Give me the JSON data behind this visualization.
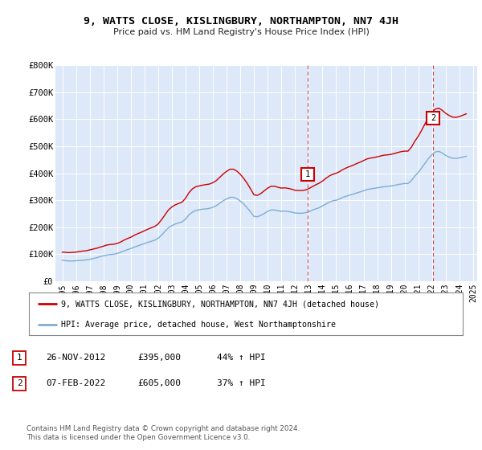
{
  "title": "9, WATTS CLOSE, KISLINGBURY, NORTHAMPTON, NN7 4JH",
  "subtitle": "Price paid vs. HM Land Registry's House Price Index (HPI)",
  "background_color": "#ffffff",
  "plot_bg_color": "#dde8f8",
  "grid_color": "#ffffff",
  "ylim": [
    0,
    800000
  ],
  "yticks": [
    0,
    100000,
    200000,
    300000,
    400000,
    500000,
    600000,
    700000,
    800000
  ],
  "ytick_labels": [
    "£0",
    "£100K",
    "£200K",
    "£300K",
    "£400K",
    "£500K",
    "£600K",
    "£700K",
    "£800K"
  ],
  "xlim_start": 1994.5,
  "xlim_end": 2025.3,
  "xticks": [
    1995,
    1996,
    1997,
    1998,
    1999,
    2000,
    2001,
    2002,
    2003,
    2004,
    2005,
    2006,
    2007,
    2008,
    2009,
    2010,
    2011,
    2012,
    2013,
    2014,
    2015,
    2016,
    2017,
    2018,
    2019,
    2020,
    2021,
    2022,
    2023,
    2024,
    2025
  ],
  "line1_color": "#cc0000",
  "line2_color": "#7eaed4",
  "sale1_x": 2012.9,
  "sale1_y": 395000,
  "sale1_label": "1",
  "sale2_x": 2022.1,
  "sale2_y": 605000,
  "sale2_label": "2",
  "vline1_x": 2012.9,
  "vline2_x": 2022.1,
  "vline_color": "#cc0000",
  "legend_line1": "9, WATTS CLOSE, KISLINGBURY, NORTHAMPTON, NN7 4JH (detached house)",
  "legend_line2": "HPI: Average price, detached house, West Northamptonshire",
  "table_row1": [
    "1",
    "26-NOV-2012",
    "£395,000",
    "44% ↑ HPI"
  ],
  "table_row2": [
    "2",
    "07-FEB-2022",
    "£605,000",
    "37% ↑ HPI"
  ],
  "footer": "Contains HM Land Registry data © Crown copyright and database right 2024.\nThis data is licensed under the Open Government Licence v3.0.",
  "red_hpi": [
    [
      1995.0,
      108000
    ],
    [
      1995.25,
      107000
    ],
    [
      1995.5,
      106000
    ],
    [
      1995.75,
      107000
    ],
    [
      1996.0,
      108000
    ],
    [
      1996.25,
      110000
    ],
    [
      1996.5,
      112000
    ],
    [
      1996.75,
      113000
    ],
    [
      1997.0,
      116000
    ],
    [
      1997.25,
      119000
    ],
    [
      1997.5,
      122000
    ],
    [
      1997.75,
      126000
    ],
    [
      1998.0,
      130000
    ],
    [
      1998.25,
      134000
    ],
    [
      1998.5,
      136000
    ],
    [
      1998.75,
      137000
    ],
    [
      1999.0,
      140000
    ],
    [
      1999.25,
      145000
    ],
    [
      1999.5,
      152000
    ],
    [
      1999.75,
      158000
    ],
    [
      2000.0,
      163000
    ],
    [
      2000.25,
      170000
    ],
    [
      2000.5,
      176000
    ],
    [
      2000.75,
      181000
    ],
    [
      2001.0,
      187000
    ],
    [
      2001.25,
      193000
    ],
    [
      2001.5,
      198000
    ],
    [
      2001.75,
      203000
    ],
    [
      2002.0,
      212000
    ],
    [
      2002.25,
      228000
    ],
    [
      2002.5,
      246000
    ],
    [
      2002.75,
      264000
    ],
    [
      2003.0,
      275000
    ],
    [
      2003.25,
      283000
    ],
    [
      2003.5,
      288000
    ],
    [
      2003.75,
      293000
    ],
    [
      2004.0,
      307000
    ],
    [
      2004.25,
      328000
    ],
    [
      2004.5,
      342000
    ],
    [
      2004.75,
      350000
    ],
    [
      2005.0,
      353000
    ],
    [
      2005.25,
      356000
    ],
    [
      2005.5,
      358000
    ],
    [
      2005.75,
      360000
    ],
    [
      2006.0,
      365000
    ],
    [
      2006.25,
      373000
    ],
    [
      2006.5,
      385000
    ],
    [
      2006.75,
      397000
    ],
    [
      2007.0,
      407000
    ],
    [
      2007.25,
      415000
    ],
    [
      2007.5,
      415000
    ],
    [
      2007.75,
      408000
    ],
    [
      2008.0,
      396000
    ],
    [
      2008.25,
      381000
    ],
    [
      2008.5,
      363000
    ],
    [
      2008.75,
      342000
    ],
    [
      2009.0,
      320000
    ],
    [
      2009.25,
      318000
    ],
    [
      2009.5,
      325000
    ],
    [
      2009.75,
      335000
    ],
    [
      2010.0,
      345000
    ],
    [
      2010.25,
      352000
    ],
    [
      2010.5,
      352000
    ],
    [
      2010.75,
      348000
    ],
    [
      2011.0,
      345000
    ],
    [
      2011.25,
      346000
    ],
    [
      2011.5,
      344000
    ],
    [
      2011.75,
      341000
    ],
    [
      2012.0,
      337000
    ],
    [
      2012.25,
      336000
    ],
    [
      2012.5,
      336000
    ],
    [
      2012.75,
      338000
    ],
    [
      2013.0,
      343000
    ],
    [
      2013.25,
      350000
    ],
    [
      2013.5,
      357000
    ],
    [
      2013.75,
      363000
    ],
    [
      2014.0,
      371000
    ],
    [
      2014.25,
      381000
    ],
    [
      2014.5,
      390000
    ],
    [
      2014.75,
      396000
    ],
    [
      2015.0,
      400000
    ],
    [
      2015.25,
      406000
    ],
    [
      2015.5,
      414000
    ],
    [
      2015.75,
      420000
    ],
    [
      2016.0,
      425000
    ],
    [
      2016.25,
      430000
    ],
    [
      2016.5,
      436000
    ],
    [
      2016.75,
      441000
    ],
    [
      2017.0,
      447000
    ],
    [
      2017.25,
      453000
    ],
    [
      2017.5,
      456000
    ],
    [
      2017.75,
      458000
    ],
    [
      2018.0,
      461000
    ],
    [
      2018.25,
      464000
    ],
    [
      2018.5,
      467000
    ],
    [
      2018.75,
      468000
    ],
    [
      2019.0,
      470000
    ],
    [
      2019.25,
      473000
    ],
    [
      2019.5,
      477000
    ],
    [
      2019.75,
      480000
    ],
    [
      2020.0,
      482000
    ],
    [
      2020.25,
      482000
    ],
    [
      2020.5,
      497000
    ],
    [
      2020.75,
      519000
    ],
    [
      2021.0,
      537000
    ],
    [
      2021.25,
      560000
    ],
    [
      2021.5,
      584000
    ],
    [
      2021.75,
      607000
    ],
    [
      2022.0,
      625000
    ],
    [
      2022.25,
      638000
    ],
    [
      2022.5,
      641000
    ],
    [
      2022.75,
      633000
    ],
    [
      2023.0,
      622000
    ],
    [
      2023.25,
      614000
    ],
    [
      2023.5,
      608000
    ],
    [
      2023.75,
      607000
    ],
    [
      2024.0,
      610000
    ],
    [
      2024.5,
      620000
    ]
  ],
  "blue_hpi": [
    [
      1995.0,
      78000
    ],
    [
      1995.25,
      76000
    ],
    [
      1995.5,
      75000
    ],
    [
      1995.75,
      75000
    ],
    [
      1996.0,
      76000
    ],
    [
      1996.25,
      77000
    ],
    [
      1996.5,
      78000
    ],
    [
      1996.75,
      79000
    ],
    [
      1997.0,
      81000
    ],
    [
      1997.25,
      84000
    ],
    [
      1997.5,
      87000
    ],
    [
      1997.75,
      91000
    ],
    [
      1998.0,
      94000
    ],
    [
      1998.25,
      97000
    ],
    [
      1998.5,
      99000
    ],
    [
      1998.75,
      100000
    ],
    [
      1999.0,
      103000
    ],
    [
      1999.25,
      107000
    ],
    [
      1999.5,
      112000
    ],
    [
      1999.75,
      117000
    ],
    [
      2000.0,
      121000
    ],
    [
      2000.25,
      126000
    ],
    [
      2000.5,
      131000
    ],
    [
      2000.75,
      135000
    ],
    [
      2001.0,
      140000
    ],
    [
      2001.25,
      144000
    ],
    [
      2001.5,
      148000
    ],
    [
      2001.75,
      152000
    ],
    [
      2002.0,
      159000
    ],
    [
      2002.25,
      171000
    ],
    [
      2002.5,
      185000
    ],
    [
      2002.75,
      198000
    ],
    [
      2003.0,
      206000
    ],
    [
      2003.25,
      212000
    ],
    [
      2003.5,
      216000
    ],
    [
      2003.75,
      220000
    ],
    [
      2004.0,
      230000
    ],
    [
      2004.25,
      246000
    ],
    [
      2004.5,
      256000
    ],
    [
      2004.75,
      262000
    ],
    [
      2005.0,
      265000
    ],
    [
      2005.25,
      267000
    ],
    [
      2005.5,
      268000
    ],
    [
      2005.75,
      270000
    ],
    [
      2006.0,
      274000
    ],
    [
      2006.25,
      280000
    ],
    [
      2006.5,
      289000
    ],
    [
      2006.75,
      298000
    ],
    [
      2007.0,
      305000
    ],
    [
      2007.25,
      311000
    ],
    [
      2007.5,
      311000
    ],
    [
      2007.75,
      306000
    ],
    [
      2008.0,
      297000
    ],
    [
      2008.25,
      286000
    ],
    [
      2008.5,
      272000
    ],
    [
      2008.75,
      257000
    ],
    [
      2009.0,
      240000
    ],
    [
      2009.25,
      239000
    ],
    [
      2009.5,
      244000
    ],
    [
      2009.75,
      251000
    ],
    [
      2010.0,
      259000
    ],
    [
      2010.25,
      264000
    ],
    [
      2010.5,
      264000
    ],
    [
      2010.75,
      261000
    ],
    [
      2011.0,
      259000
    ],
    [
      2011.25,
      260000
    ],
    [
      2011.5,
      258000
    ],
    [
      2011.75,
      256000
    ],
    [
      2012.0,
      253000
    ],
    [
      2012.25,
      252000
    ],
    [
      2012.5,
      252000
    ],
    [
      2012.75,
      254000
    ],
    [
      2013.0,
      257000
    ],
    [
      2013.25,
      263000
    ],
    [
      2013.5,
      268000
    ],
    [
      2013.75,
      272000
    ],
    [
      2014.0,
      279000
    ],
    [
      2014.25,
      286000
    ],
    [
      2014.5,
      293000
    ],
    [
      2014.75,
      298000
    ],
    [
      2015.0,
      300000
    ],
    [
      2015.25,
      305000
    ],
    [
      2015.5,
      311000
    ],
    [
      2015.75,
      315000
    ],
    [
      2016.0,
      319000
    ],
    [
      2016.25,
      323000
    ],
    [
      2016.5,
      327000
    ],
    [
      2016.75,
      331000
    ],
    [
      2017.0,
      335000
    ],
    [
      2017.25,
      340000
    ],
    [
      2017.5,
      342000
    ],
    [
      2017.75,
      344000
    ],
    [
      2018.0,
      346000
    ],
    [
      2018.25,
      348000
    ],
    [
      2018.5,
      350000
    ],
    [
      2018.75,
      351000
    ],
    [
      2019.0,
      353000
    ],
    [
      2019.25,
      355000
    ],
    [
      2019.5,
      358000
    ],
    [
      2019.75,
      360000
    ],
    [
      2020.0,
      362000
    ],
    [
      2020.25,
      362000
    ],
    [
      2020.5,
      373000
    ],
    [
      2020.75,
      390000
    ],
    [
      2021.0,
      403000
    ],
    [
      2021.25,
      420000
    ],
    [
      2021.5,
      438000
    ],
    [
      2021.75,
      455000
    ],
    [
      2022.0,
      469000
    ],
    [
      2022.25,
      479000
    ],
    [
      2022.5,
      481000
    ],
    [
      2022.75,
      475000
    ],
    [
      2023.0,
      466000
    ],
    [
      2023.25,
      460000
    ],
    [
      2023.5,
      456000
    ],
    [
      2023.75,
      455000
    ],
    [
      2024.0,
      457000
    ],
    [
      2024.5,
      463000
    ]
  ]
}
